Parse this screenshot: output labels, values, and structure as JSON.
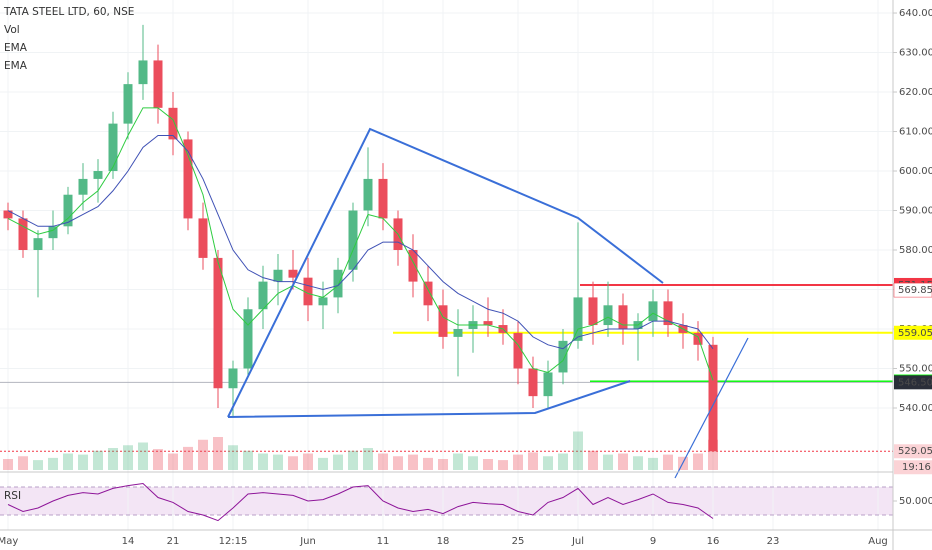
{
  "chart_data": {
    "type": "candlestick",
    "title": "TATA STEEL LTD, 60, NSE",
    "categories": [
      "May",
      null,
      null,
      null,
      null,
      null,
      null,
      null,
      "14",
      null,
      null,
      "21",
      null,
      null,
      null,
      "12:15",
      null,
      null,
      null,
      null,
      "Jun",
      null,
      null,
      null,
      null,
      "11",
      null,
      null,
      null,
      "18",
      null,
      null,
      null,
      null,
      "25",
      null,
      null,
      null,
      "Jul",
      null,
      null,
      null,
      null,
      "9",
      null,
      null,
      null,
      "16",
      null,
      null,
      null,
      "23",
      null,
      null,
      null,
      null,
      null,
      null,
      "Aug",
      null
    ],
    "open": [
      590,
      588,
      580,
      583,
      586,
      594,
      598,
      600,
      612,
      622,
      628,
      616,
      608,
      588,
      578,
      545,
      550,
      565,
      572,
      575,
      573,
      566,
      568,
      575,
      590,
      598,
      588,
      580,
      572,
      566,
      558,
      560,
      562,
      561,
      559,
      550,
      543,
      549,
      557,
      568,
      561,
      566,
      560,
      562,
      567,
      561,
      559,
      556,
      null,
      null,
      null,
      null,
      null,
      null,
      null,
      null,
      null,
      null,
      null,
      null
    ],
    "high": [
      592,
      590,
      585,
      590,
      596,
      602,
      603,
      615,
      625,
      637,
      632,
      620,
      610,
      592,
      580,
      552,
      568,
      576,
      579,
      580,
      578,
      572,
      578,
      592,
      606,
      602,
      590,
      584,
      576,
      570,
      565,
      566,
      568,
      565,
      562,
      553,
      552,
      560,
      587,
      572,
      572,
      569,
      564,
      570,
      570,
      564,
      562,
      558,
      null,
      null,
      null,
      null,
      null,
      null,
      null,
      null,
      null,
      null,
      null,
      null
    ],
    "low": [
      585,
      578,
      568,
      580,
      584,
      590,
      592,
      598,
      608,
      618,
      612,
      604,
      585,
      575,
      540,
      538,
      548,
      560,
      566,
      570,
      562,
      560,
      564,
      572,
      586,
      585,
      576,
      568,
      562,
      555,
      548,
      554,
      558,
      556,
      546,
      540,
      540,
      546,
      555,
      556,
      558,
      556,
      552,
      558,
      558,
      555,
      552,
      529.05,
      null,
      null,
      null,
      null,
      null,
      null,
      null,
      null,
      null,
      null,
      null,
      null
    ],
    "close": [
      588,
      580,
      583,
      586,
      594,
      598,
      600,
      612,
      622,
      628,
      616,
      608,
      588,
      578,
      545,
      550,
      565,
      572,
      575,
      573,
      566,
      568,
      575,
      590,
      598,
      588,
      580,
      572,
      566,
      558,
      560,
      562,
      561,
      559,
      550,
      543,
      549,
      557,
      568,
      561,
      566,
      560,
      562,
      567,
      561,
      559,
      556,
      529.05,
      null,
      null,
      null,
      null,
      null,
      null,
      null,
      null,
      null,
      null,
      null,
      null
    ],
    "up_color": "#53b987",
    "down_color": "#eb4d5c",
    "ylim": [
      524.3,
      643.3
    ],
    "yticks": [
      {
        "value": 540,
        "label": "540.00"
      },
      {
        "value": 550,
        "label": "550.00"
      },
      {
        "value": 560,
        "label": "560.00"
      },
      {
        "value": 570,
        "label": "570.00"
      },
      {
        "value": 580,
        "label": "580.00"
      },
      {
        "value": 590,
        "label": "590.00"
      },
      {
        "value": 600,
        "label": "600.00"
      },
      {
        "value": 610,
        "label": "610.00"
      },
      {
        "value": 620,
        "label": "620.00"
      },
      {
        "value": 630,
        "label": "630.00"
      },
      {
        "value": 640,
        "label": "640.00"
      }
    ],
    "grid": true,
    "volume": {
      "name": "Vol",
      "ylim": [
        0,
        100
      ],
      "values": [
        20,
        25,
        18,
        22,
        30,
        28,
        35,
        40,
        45,
        50,
        38,
        30,
        42,
        55,
        60,
        45,
        35,
        30,
        28,
        25,
        30,
        22,
        28,
        35,
        40,
        30,
        25,
        28,
        22,
        20,
        30,
        25,
        20,
        18,
        28,
        32,
        25,
        30,
        70,
        35,
        28,
        30,
        25,
        22,
        28,
        24,
        30,
        55,
        null,
        null,
        null,
        null,
        null,
        null,
        null,
        null,
        null,
        null,
        null,
        null
      ]
    },
    "series": [
      {
        "name": "EMA",
        "color": "#2ecc40",
        "values": [
          588,
          586,
          584,
          585,
          588,
          592,
          595,
          601,
          609,
          616,
          616,
          613,
          604,
          594,
          577,
          565,
          561,
          565,
          569,
          571,
          569,
          568,
          571,
          580,
          589,
          588,
          584,
          577,
          570,
          563,
          561,
          561,
          561,
          560,
          556,
          550,
          549,
          552,
          560,
          561,
          563,
          561,
          561,
          564,
          562,
          560,
          558,
          547,
          null,
          null,
          null,
          null,
          null,
          null,
          null,
          null,
          null,
          null,
          null,
          null
        ]
      },
      {
        "name": "EMA",
        "color": "#3f51b5",
        "values": [
          590,
          588,
          586,
          586,
          587,
          589,
          591,
          595,
          600,
          606,
          609,
          609,
          605,
          598,
          589,
          580,
          575,
          573,
          572,
          572,
          571,
          570,
          571,
          575,
          580,
          582,
          582,
          580,
          576,
          572,
          569,
          567,
          565,
          564,
          562,
          558,
          556,
          555,
          558,
          559,
          560,
          560,
          560,
          562,
          562,
          561,
          560,
          555,
          null,
          null,
          null,
          null,
          null,
          null,
          null,
          null,
          null,
          null,
          null,
          null
        ]
      }
    ],
    "rsi": {
      "name": "RSI",
      "color": "#8e1599",
      "ylim": [
        10,
        90
      ],
      "yticks": [
        {
          "value": 50,
          "label": "50.0000"
        }
      ],
      "band": [
        30,
        70
      ],
      "values": [
        45,
        35,
        40,
        50,
        58,
        62,
        60,
        68,
        72,
        75,
        55,
        48,
        35,
        30,
        22,
        40,
        60,
        62,
        60,
        58,
        50,
        52,
        60,
        70,
        72,
        50,
        40,
        35,
        38,
        32,
        42,
        48,
        46,
        45,
        35,
        30,
        48,
        55,
        68,
        45,
        55,
        45,
        52,
        60,
        48,
        45,
        40,
        25,
        null,
        null,
        null,
        null,
        null,
        null,
        null,
        null,
        null,
        null,
        null,
        null
      ]
    },
    "levels": [
      {
        "value": 571.15,
        "bg": "#f23645",
        "fg": "#ffffff"
      },
      {
        "value": 569.85,
        "bg": "#ffffff",
        "fg": "#f23645"
      },
      {
        "value": 559.05,
        "bg": "#ffff00",
        "fg": "#000000"
      },
      {
        "value": 546.7,
        "label": "546.70",
        "bg": "#00ff00",
        "fg": "#000000"
      },
      {
        "value": 546.5,
        "label": "546.50",
        "bg": "#2a2e39",
        "fg": "#ffffff"
      },
      {
        "value": 529.05,
        "bg": "#fbd3d6",
        "fg": "#d32f2f"
      }
    ],
    "countdown": "19:16"
  }
}
